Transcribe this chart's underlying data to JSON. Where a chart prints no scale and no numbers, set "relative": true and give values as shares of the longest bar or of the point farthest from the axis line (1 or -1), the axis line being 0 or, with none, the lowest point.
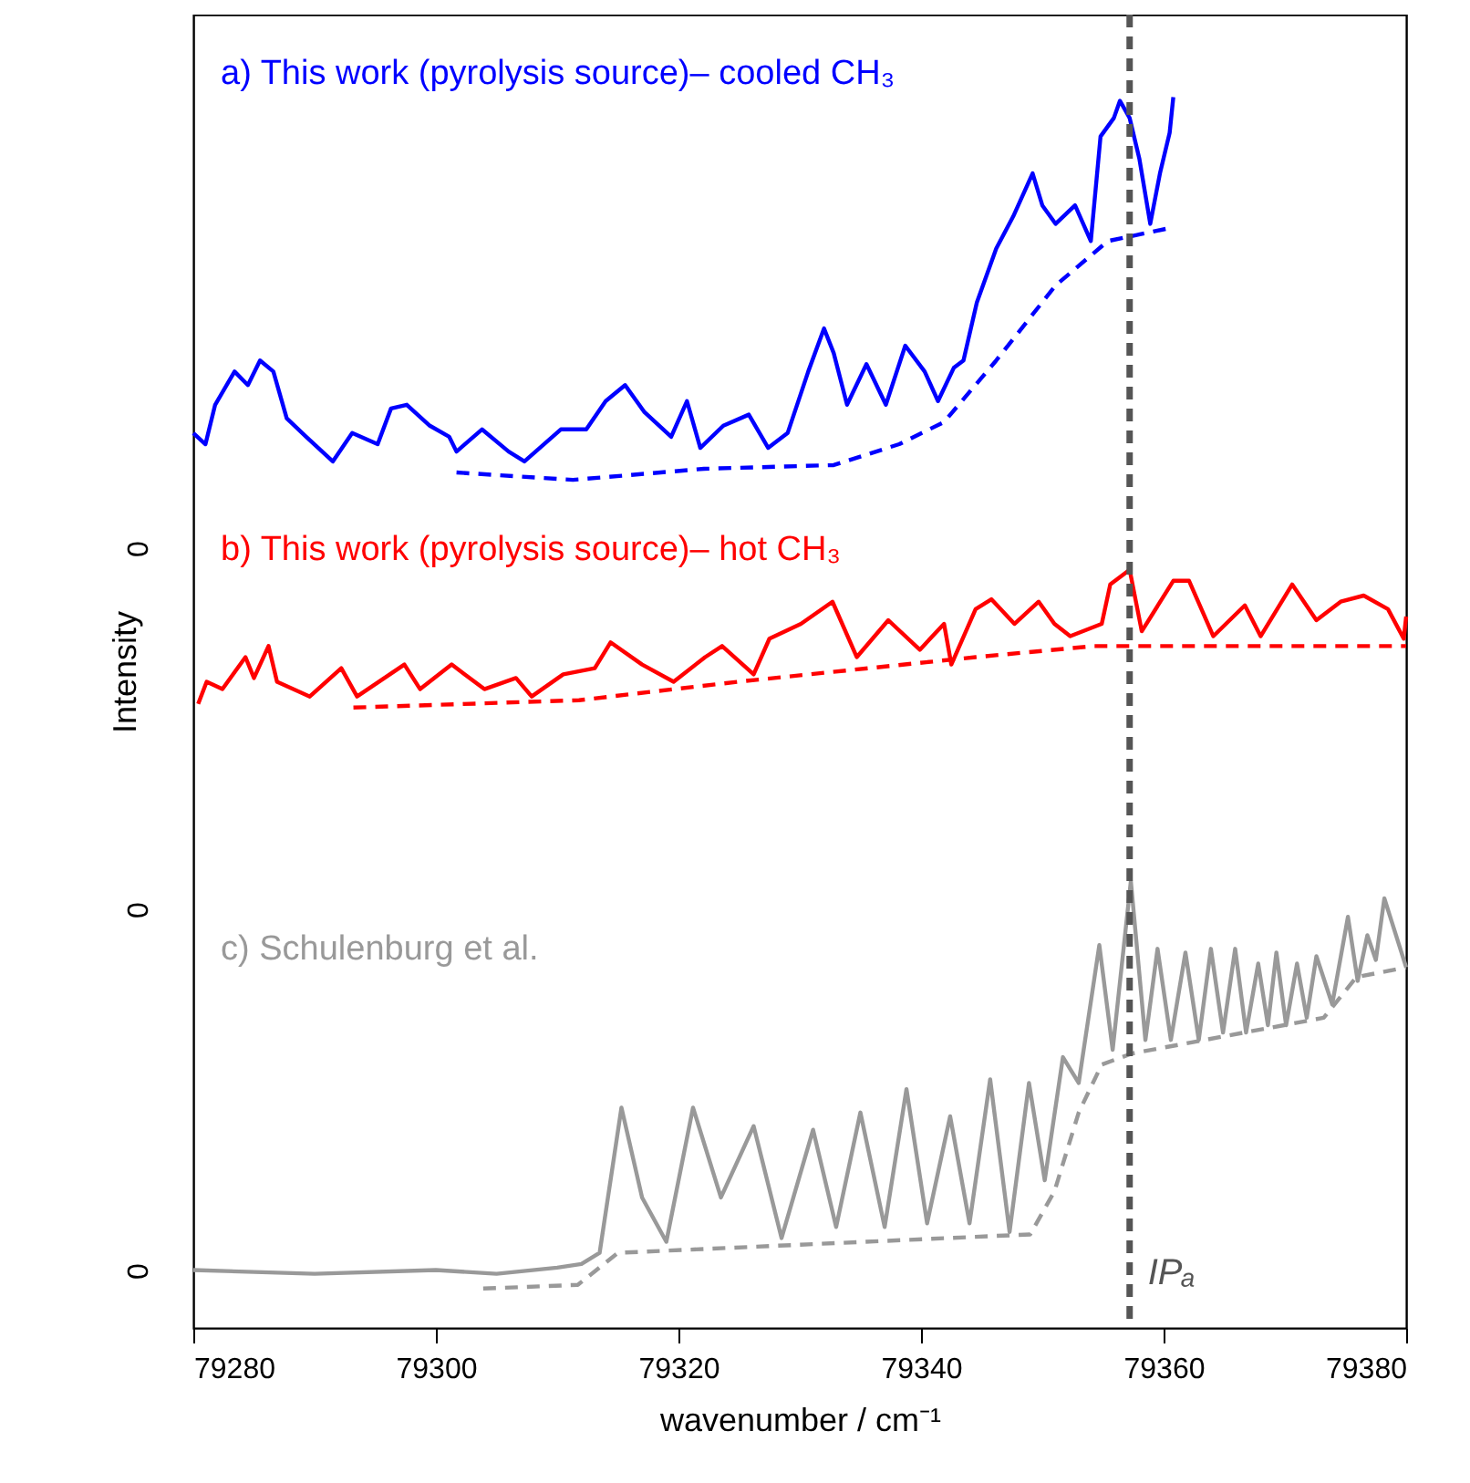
{
  "chart_data": {
    "type": "line",
    "relative": true,
    "xlabel": "wavenumber / cm⁻¹",
    "ylabel": "Intensity",
    "xlim": [
      79280,
      79380
    ],
    "xticks": [
      79280,
      79300,
      79320,
      79340,
      79360,
      79380
    ],
    "marker": "none",
    "series": [
      {
        "name": "a) This work (pyrolysis source)– cooled CH₃",
        "color": "#0000ff",
        "line_style": "solid",
        "x": [
          79280.0,
          79281.0,
          79281.8,
          79283.4,
          79284.5,
          79285.5,
          79286.6,
          79287.7,
          79289.3,
          79291.5,
          79293.1,
          79295.2,
          79296.3,
          79297.6,
          79299.5,
          79301.1,
          79301.7,
          79303.8,
          79306.0,
          79307.3,
          79310.3,
          79312.4,
          79314.0,
          79315.6,
          79317.2,
          79319.4,
          79320.7,
          79321.8,
          79323.7,
          79325.8,
          79327.4,
          79329.0,
          79330.7,
          79332.0,
          79332.8,
          79333.9,
          79335.5,
          79337.1,
          79338.7,
          79340.3,
          79341.4,
          79342.7,
          79343.5,
          79344.6,
          79346.2,
          79347.6,
          79349.2,
          79350.0,
          79351.1,
          79352.7,
          79354.0,
          79354.8,
          79355.9,
          79356.4,
          79357.2,
          79358.0,
          79358.9,
          79359.7,
          79360.5,
          79360.8
        ],
        "values": [
          0.727,
          0.718,
          0.75,
          0.777,
          0.766,
          0.786,
          0.777,
          0.739,
          0.724,
          0.704,
          0.727,
          0.718,
          0.747,
          0.75,
          0.733,
          0.724,
          0.712,
          0.73,
          0.712,
          0.704,
          0.73,
          0.73,
          0.753,
          0.766,
          0.744,
          0.724,
          0.753,
          0.715,
          0.733,
          0.742,
          0.715,
          0.727,
          0.777,
          0.812,
          0.792,
          0.75,
          0.783,
          0.75,
          0.798,
          0.777,
          0.753,
          0.78,
          0.786,
          0.833,
          0.877,
          0.903,
          0.938,
          0.912,
          0.897,
          0.912,
          0.883,
          0.968,
          0.983,
          0.997,
          0.983,
          0.95,
          0.897,
          0.938,
          0.971,
          1.0
        ]
      },
      {
        "color": "#0000ff",
        "line_style": "dashed",
        "x": [
          79301.7,
          79311.3,
          79322.1,
          79332.8,
          79338.2,
          79341.9,
          79346.2,
          79351.1,
          79355.4,
          79360.7
        ],
        "values": [
          0.695,
          0.689,
          0.698,
          0.701,
          0.718,
          0.736,
          0.786,
          0.847,
          0.883,
          0.894
        ]
      },
      {
        "name": "b) This work (pyrolysis source)– hot CH₃",
        "color": "#ff0000",
        "line_style": "solid",
        "x": [
          79280.4,
          79281.1,
          79282.4,
          79284.3,
          79285.0,
          79286.2,
          79286.9,
          79289.6,
          79292.2,
          79293.5,
          79297.4,
          79298.7,
          79301.3,
          79304.0,
          79306.6,
          79307.9,
          79310.5,
          79313.1,
          79314.4,
          79317.0,
          79319.6,
          79322.2,
          79323.6,
          79326.2,
          79327.5,
          79330.1,
          79332.7,
          79334.7,
          79337.3,
          79339.9,
          79341.9,
          79342.5,
          79344.5,
          79345.8,
          79347.7,
          79349.7,
          79351.0,
          79352.3,
          79354.9,
          79355.6,
          79357.2,
          79358.2,
          79360.8,
          79362.1,
          79364.1,
          79366.7,
          79368.0,
          79370.6,
          79372.6,
          79374.6,
          79376.5,
          79378.5,
          79379.8,
          79380.0
        ],
        "values": [
          0.507,
          0.525,
          0.519,
          0.545,
          0.528,
          0.554,
          0.525,
          0.513,
          0.536,
          0.513,
          0.539,
          0.519,
          0.539,
          0.519,
          0.528,
          0.513,
          0.531,
          0.536,
          0.557,
          0.539,
          0.525,
          0.545,
          0.554,
          0.531,
          0.56,
          0.572,
          0.59,
          0.545,
          0.575,
          0.551,
          0.572,
          0.539,
          0.584,
          0.592,
          0.572,
          0.59,
          0.572,
          0.562,
          0.572,
          0.604,
          0.616,
          0.566,
          0.607,
          0.607,
          0.562,
          0.587,
          0.562,
          0.604,
          0.575,
          0.59,
          0.595,
          0.584,
          0.56,
          0.578
        ]
      },
      {
        "color": "#ff0000",
        "line_style": "dashed",
        "x": [
          79293.2,
          79311.8,
          79324.9,
          79344.5,
          79354.3,
          79357.2,
          79380.0
        ],
        "values": [
          0.504,
          0.51,
          0.525,
          0.545,
          0.554,
          0.554,
          0.554
        ]
      },
      {
        "name": "c) Schulenburg et al.",
        "color": "#999999",
        "line_style": "solid",
        "x": [
          79280,
          79290,
          79300,
          79305,
          79310,
          79312,
          79313.5,
          79315.3,
          79317,
          79319,
          79321.2,
          79323.5,
          79326.2,
          79328.5,
          79331.1,
          79333,
          79335.0,
          79337,
          79338.8,
          79340.5,
          79342.4,
          79344,
          79345.7,
          79347.3,
          79348.9,
          79350.2,
          79351.7,
          79353,
          79354.7,
          79355.8,
          79357.3,
          79358.5,
          79359.5,
          79360.6,
          79361.8,
          79362.9,
          79363.9,
          79364.9,
          79365.9,
          79366.8,
          79367.8,
          79368.6,
          79369.3,
          79370.1,
          79371.0,
          79371.8,
          79372.6,
          79373.9,
          79375.2,
          79376.0,
          79376.8,
          79377.5,
          79378.2,
          79380
        ],
        "values": [
          0.047,
          0.044,
          0.047,
          0.044,
          0.049,
          0.052,
          0.061,
          0.179,
          0.106,
          0.07,
          0.179,
          0.106,
          0.164,
          0.073,
          0.161,
          0.082,
          0.175,
          0.082,
          0.194,
          0.085,
          0.172,
          0.085,
          0.202,
          0.078,
          0.199,
          0.12,
          0.22,
          0.199,
          0.311,
          0.226,
          0.363,
          0.234,
          0.308,
          0.234,
          0.305,
          0.234,
          0.308,
          0.24,
          0.308,
          0.24,
          0.296,
          0.246,
          0.305,
          0.246,
          0.296,
          0.252,
          0.302,
          0.263,
          0.334,
          0.282,
          0.319,
          0.299,
          0.349,
          0.293
        ]
      },
      {
        "color": "#999999",
        "line_style": "dashed",
        "x": [
          79303.9,
          79311.7,
          79315,
          79349,
          79351,
          79353,
          79354.9,
          79357.4,
          79373.2,
          79375.9,
          79380
        ],
        "values": [
          0.032,
          0.035,
          0.061,
          0.076,
          0.111,
          0.175,
          0.214,
          0.223,
          0.252,
          0.285,
          0.293
        ]
      }
    ],
    "annotations": [
      "0",
      "0",
      "0"
    ],
    "ref_lines": [
      {
        "axis": "x",
        "value": 79357.2,
        "label": "IPₐ",
        "color": "#555555",
        "line_style": "dashed"
      }
    ]
  }
}
